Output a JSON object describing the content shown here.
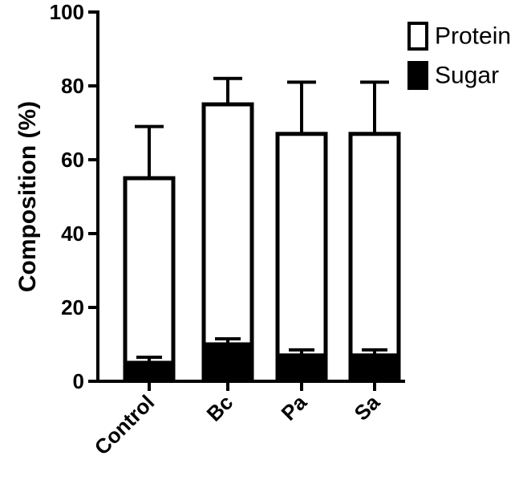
{
  "chart_data": {
    "type": "bar",
    "stacked": true,
    "title": "",
    "xlabel": "",
    "ylabel": "Composition (%)",
    "ylim": [
      0,
      100
    ],
    "yticks": [
      "0",
      "20",
      "40",
      "60",
      "80",
      "100"
    ],
    "grid": false,
    "legend_position": "top-right",
    "categories": [
      "Control",
      "Bc",
      "Pa",
      "Sa"
    ],
    "series": [
      {
        "name": "Sugar",
        "fill": "#000000",
        "values": [
          5,
          10,
          7,
          7
        ],
        "error_plus": [
          1.5,
          1.5,
          1.5,
          1.5
        ]
      },
      {
        "name": "Protein",
        "fill": "#ffffff",
        "values": [
          50,
          65,
          60,
          60
        ],
        "error_plus": [
          14,
          7,
          14,
          14
        ]
      }
    ]
  }
}
